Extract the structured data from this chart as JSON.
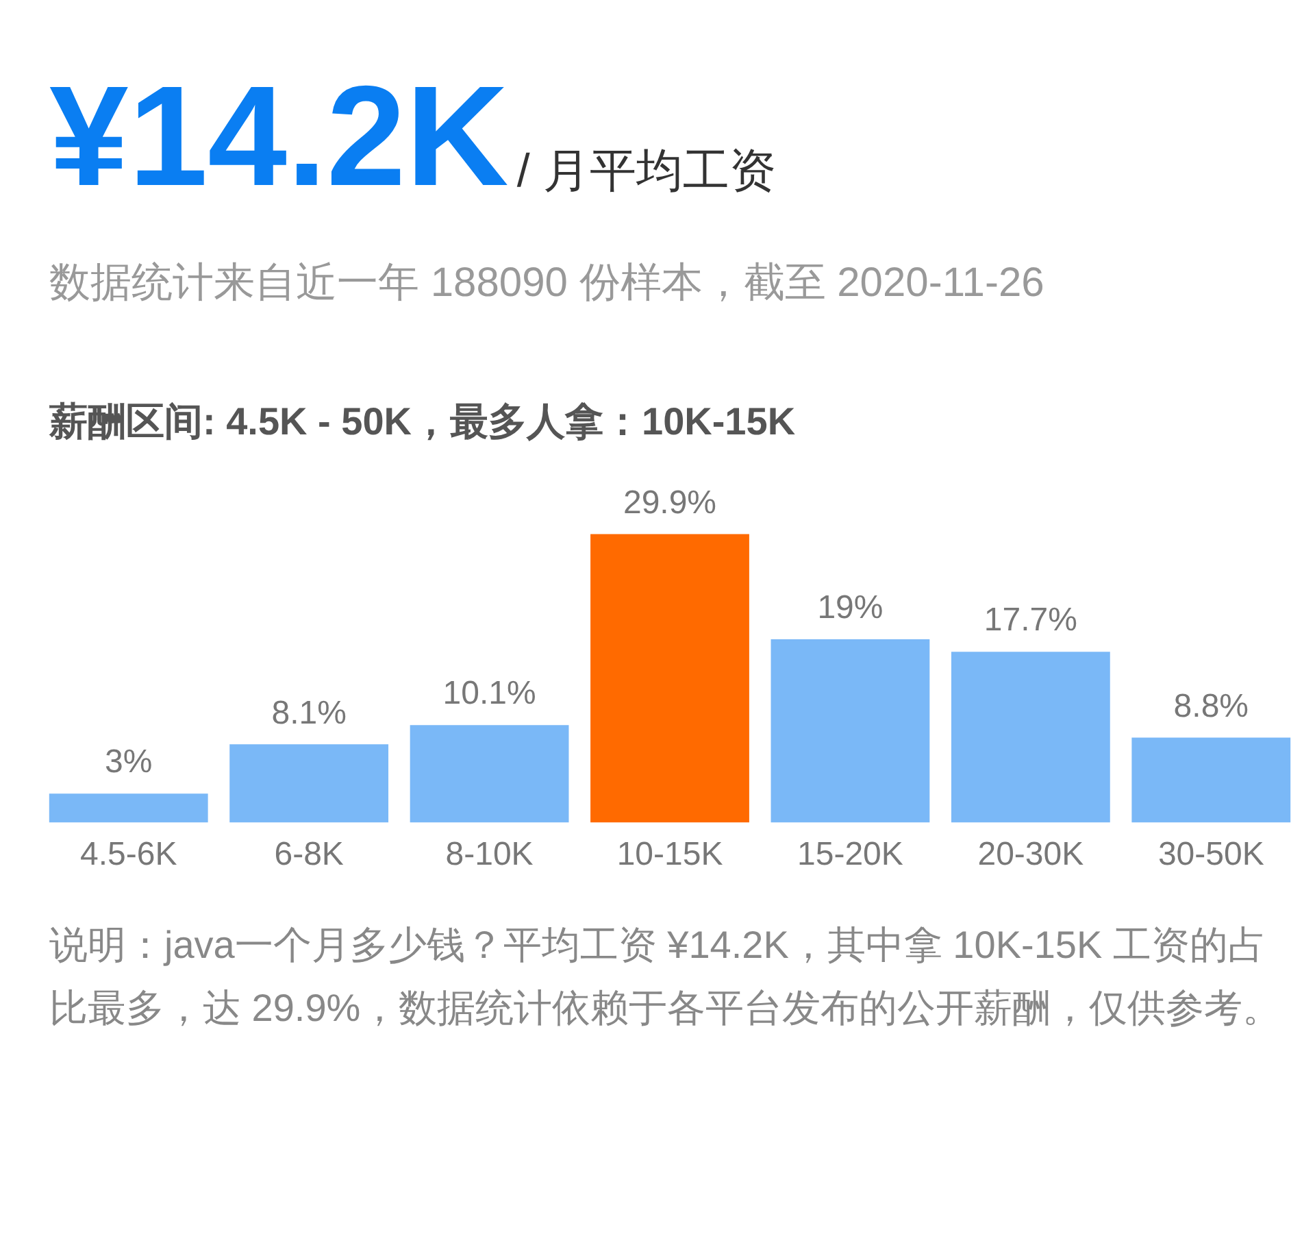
{
  "chart_data": {
    "type": "bar",
    "title": "¥14.2K",
    "subtitle": "/ 月平均工资",
    "annotations": [
      "数据统计来自近一年 188090 份样本，截至 2020-11-26",
      "薪酬区间: 4.5K - 50K，最多人拿：10K-15K",
      "说明：java一个月多少钱？平均工资 ¥14.2K，其中拿 10K-15K 工资的占比最多，达 29.9%，数据统计依赖于各平台发布的公开薪酬，仅供参考。"
    ],
    "categories": [
      "4.5-6K",
      "6-8K",
      "8-10K",
      "10-15K",
      "15-20K",
      "20-30K",
      "30-50K"
    ],
    "values": [
      3,
      8.1,
      10.1,
      29.9,
      19,
      17.7,
      8.8
    ],
    "value_labels": [
      "3%",
      "8.1%",
      "10.1%",
      "29.9%",
      "19%",
      "17.7%",
      "8.8%"
    ],
    "colors": [
      "#7ab8f7",
      "#7ab8f7",
      "#7ab8f7",
      "#ff6a00",
      "#7ab8f7",
      "#7ab8f7",
      "#7ab8f7"
    ],
    "grid": false,
    "legend": false,
    "tick_labels": "x"
  }
}
